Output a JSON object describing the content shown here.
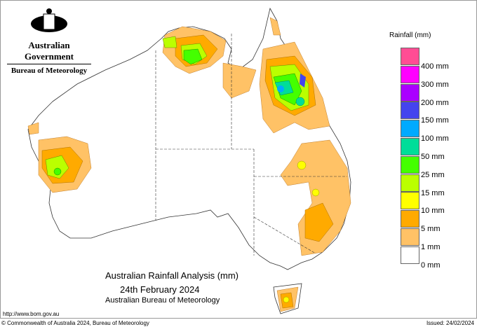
{
  "header": {
    "org": "Australian Government",
    "bureau": "Bureau of Meteorology"
  },
  "title": {
    "line1": "Australian Rainfall Analysis (mm)",
    "line2": "24th February 2024",
    "line3": "Australian Bureau of Meteorology"
  },
  "url": "http://www.bom.gov.au",
  "footer": {
    "copyright": "© Commonwealth of Australia 2024, Bureau of Meteorology",
    "issued": "Issued: 24/02/2024"
  },
  "legend": {
    "title": "Rainfall (mm)",
    "colors": [
      "#ff4d94",
      "#ff00ff",
      "#aa00ff",
      "#4444ee",
      "#00aaff",
      "#00dd99",
      "#44ff00",
      "#bbff00",
      "#ffff00",
      "#ffaa00",
      "#ffc266",
      "#ffffff"
    ],
    "labels": [
      "400 mm",
      "300 mm",
      "200 mm",
      "150 mm",
      "100 mm",
      "50 mm",
      "25 mm",
      "15 mm",
      "10 mm",
      "5 mm",
      "1 mm",
      "0 mm"
    ]
  }
}
